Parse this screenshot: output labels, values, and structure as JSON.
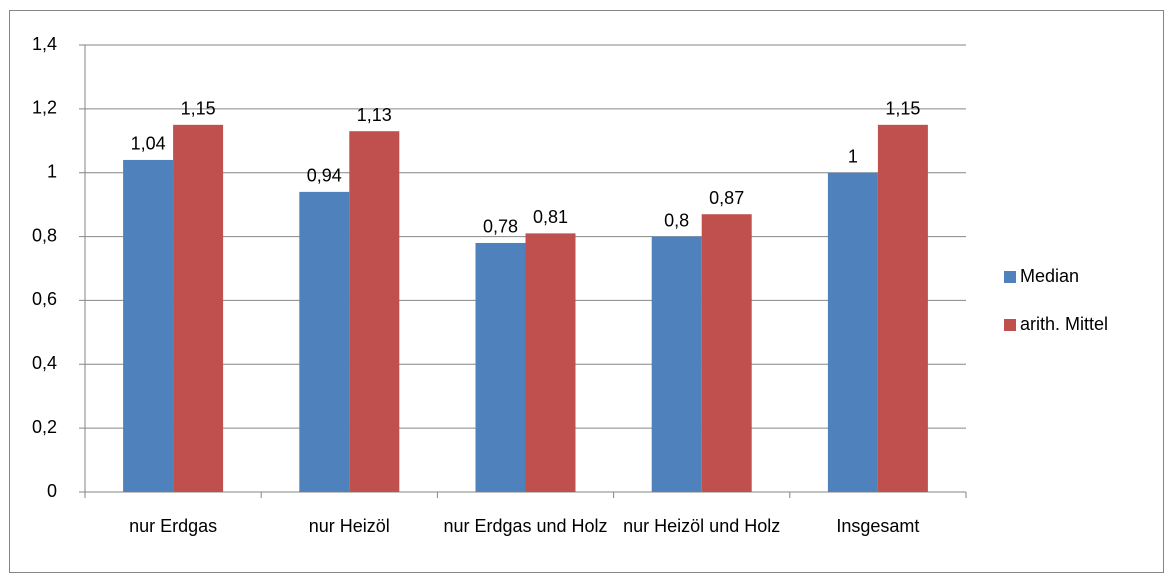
{
  "chart_data": {
    "type": "bar",
    "categories": [
      "nur Erdgas",
      "nur Heizöl",
      "nur Erdgas und Holz",
      "nur Heizöl und Holz",
      "Insgesamt"
    ],
    "series": [
      {
        "name": "Median",
        "color": "#4f81bd",
        "values": [
          1.04,
          0.94,
          0.78,
          0.8,
          1
        ],
        "value_labels": [
          "1,04",
          "0,94",
          "0,78",
          "0,8",
          "1"
        ]
      },
      {
        "name": "arith. Mittel",
        "color": "#c0504d",
        "values": [
          1.15,
          1.13,
          0.81,
          0.87,
          1.15
        ],
        "value_labels": [
          "1,15",
          "1,13",
          "0,81",
          "0,87",
          "1,15"
        ]
      }
    ],
    "ylim": [
      0,
      1.4
    ],
    "yticks": [
      0,
      {
        "value": 0.2,
        "label": "0,2"
      },
      {
        "value": 0.4,
        "label": "0,4"
      },
      {
        "value": 0.6,
        "label": "0,6"
      },
      {
        "value": 0.8,
        "label": "0,8"
      },
      1,
      {
        "value": 1.2,
        "label": "1,2"
      },
      {
        "value": 1.4,
        "label": "1,4"
      }
    ],
    "grid": true,
    "legend": "right"
  }
}
